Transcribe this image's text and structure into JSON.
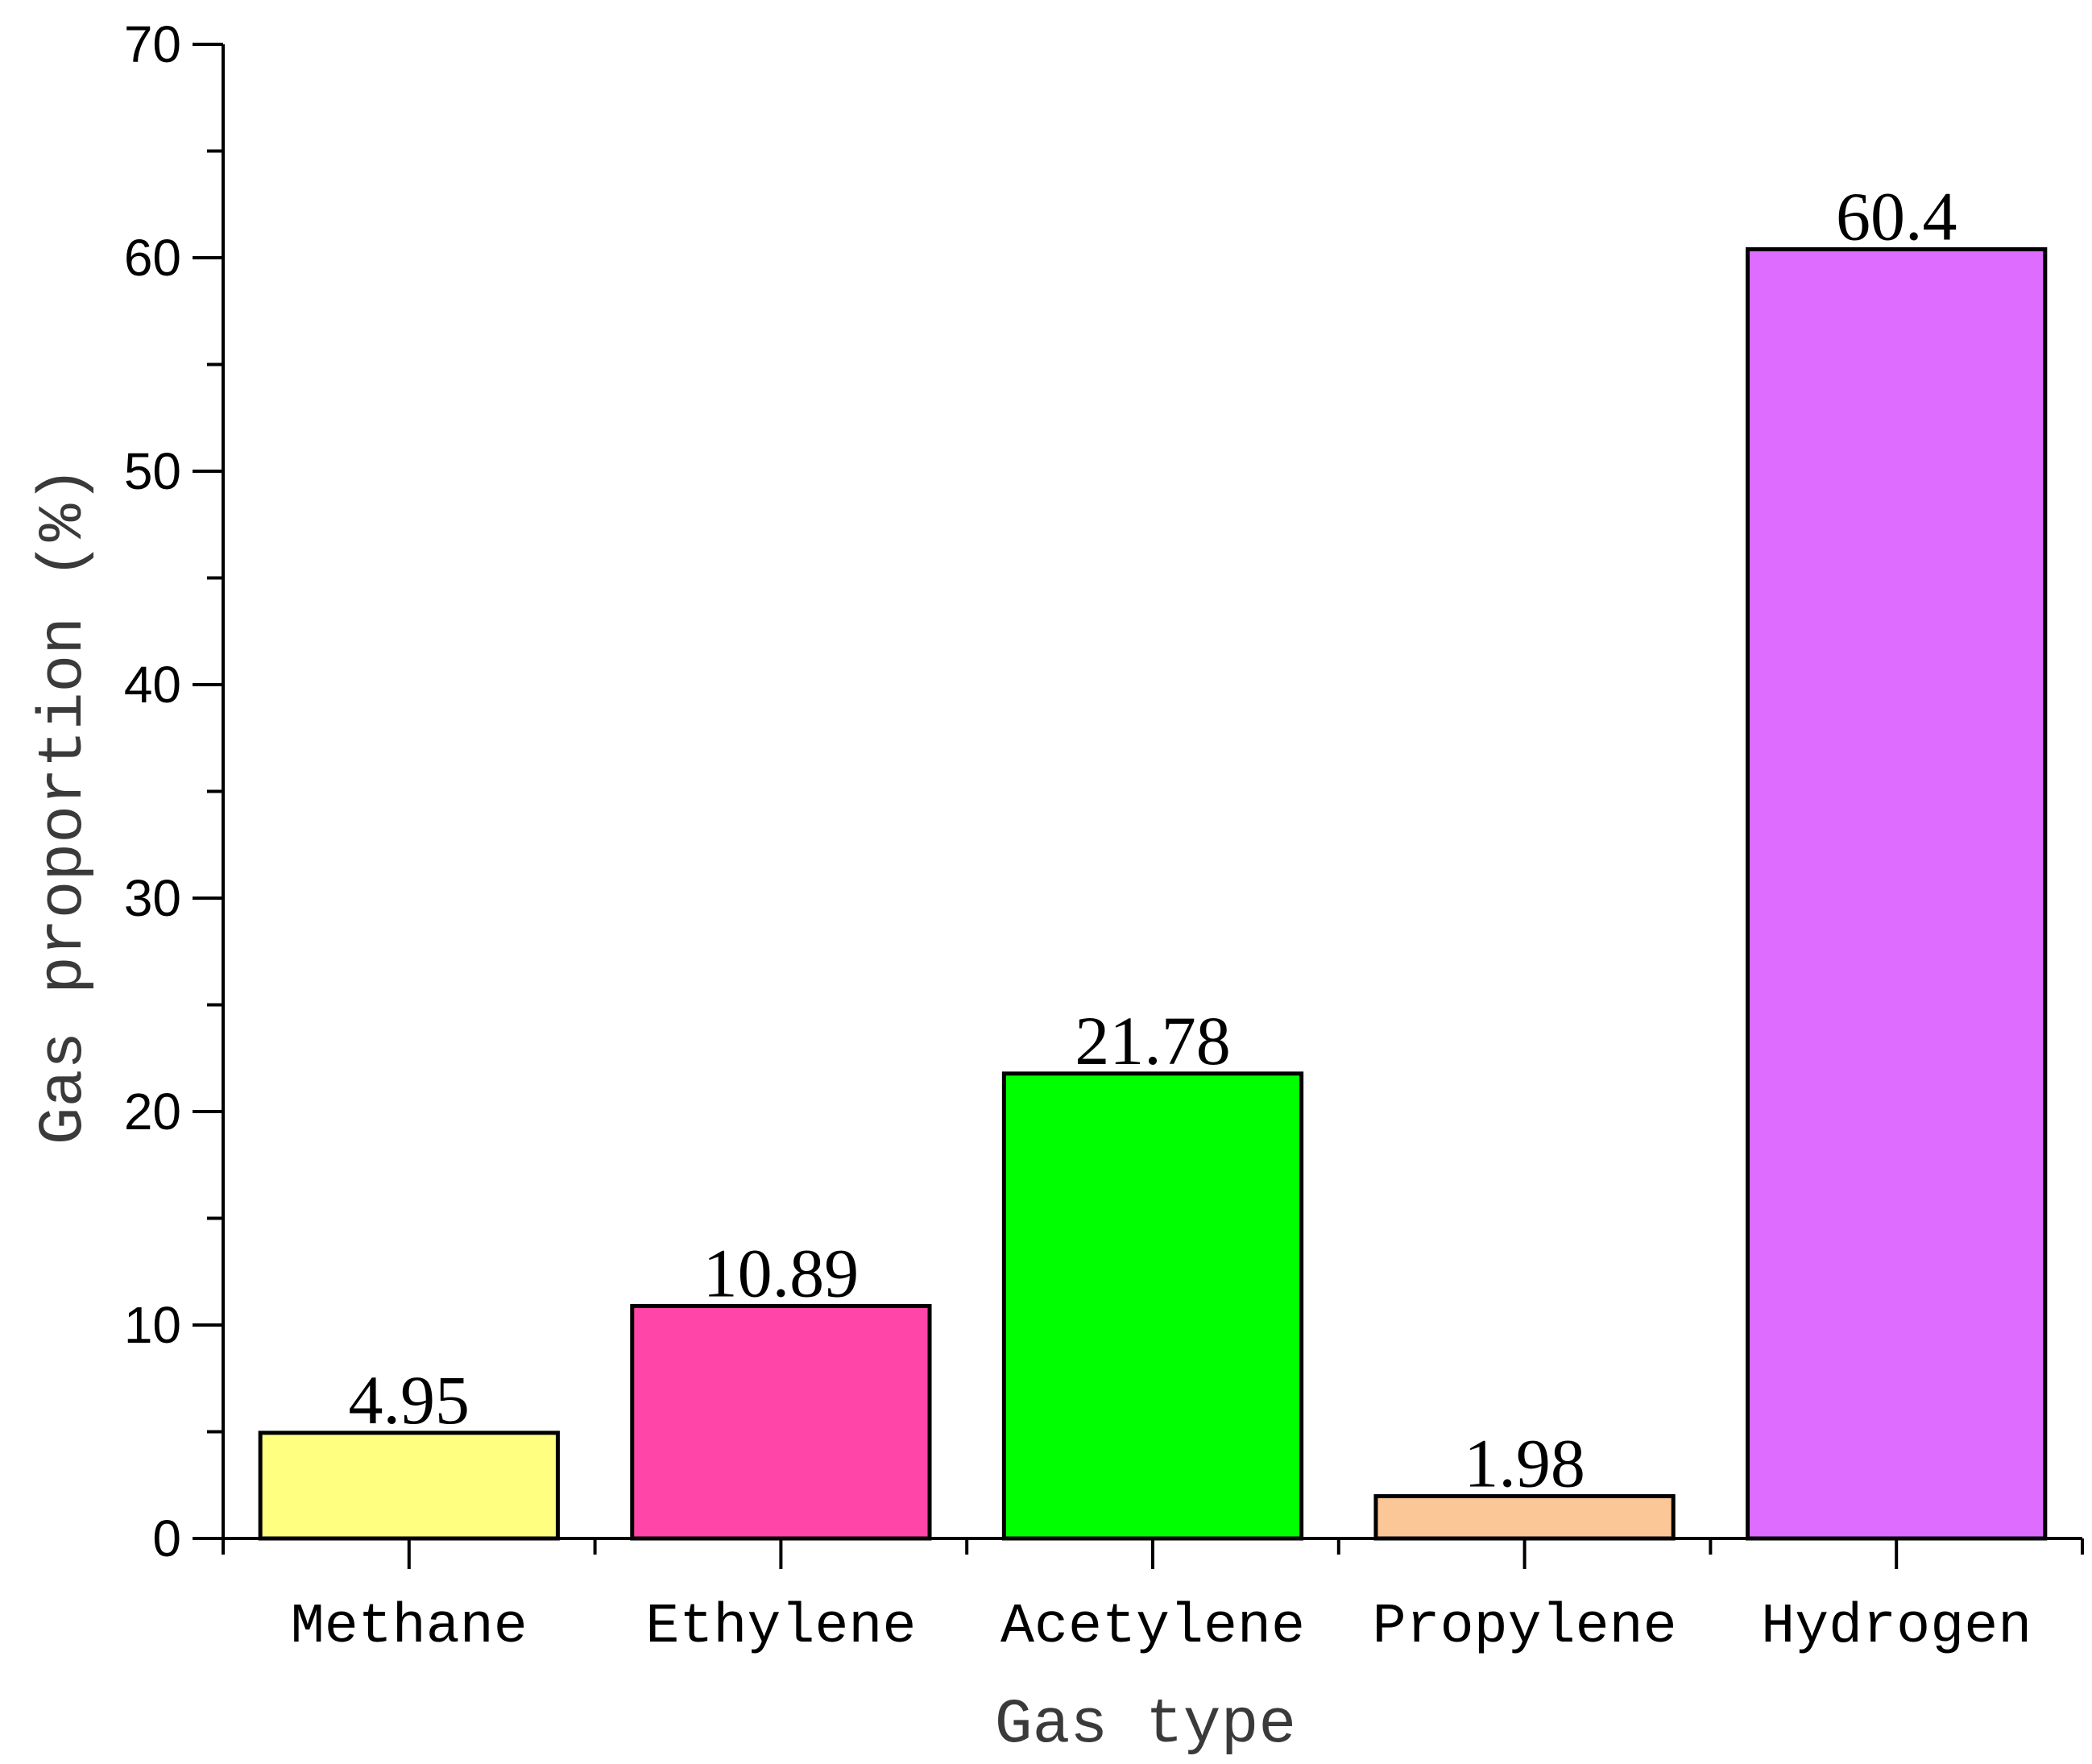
{
  "chart_data": {
    "type": "bar",
    "categories": [
      "Methane",
      "Ethylene",
      "Acetylene",
      "Propylene",
      "Hydrogen"
    ],
    "values": [
      4.95,
      10.89,
      21.78,
      1.98,
      60.4
    ],
    "value_labels": [
      "4.95",
      "10.89",
      "21.78",
      "1.98",
      "60.4"
    ],
    "colors": [
      "#ffff80",
      "#ff45a8",
      "#00ff00",
      "#fbc796",
      "#dd6cff"
    ],
    "title": "",
    "xlabel": "Gas type",
    "ylabel": "Gas proportion (%)",
    "ylim": [
      0,
      70
    ],
    "yticks": [
      0,
      10,
      20,
      30,
      40,
      50,
      60,
      70
    ],
    "grid": false
  }
}
